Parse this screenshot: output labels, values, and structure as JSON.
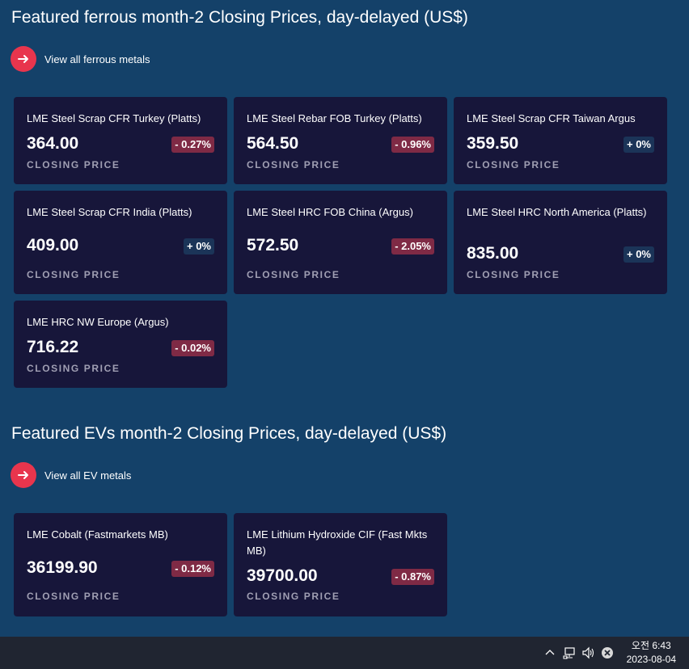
{
  "ferrous": {
    "title": "Featured ferrous month-2 Closing Prices, day-delayed (US$)",
    "view_all": "View all ferrous metals",
    "cards": [
      {
        "name": "LME Steel Scrap CFR Turkey (Platts)",
        "price": "364.00",
        "change": "- 0.27%",
        "sub": "CLOSING PRICE"
      },
      {
        "name": "LME Steel Rebar FOB Turkey (Platts)",
        "price": "564.50",
        "change": "- 0.96%",
        "sub": "CLOSING PRICE"
      },
      {
        "name": "LME Steel Scrap CFR Taiwan Argus",
        "price": "359.50",
        "change": "+ 0%",
        "sub": "CLOSING PRICE"
      },
      {
        "name": "LME Steel Scrap CFR India (Platts)",
        "price": "409.00",
        "change": "+ 0%",
        "sub": "CLOSING PRICE"
      },
      {
        "name": "LME Steel HRC FOB China (Argus)",
        "price": "572.50",
        "change": "- 2.05%",
        "sub": "CLOSING PRICE"
      },
      {
        "name": "LME Steel HRC North America (Platts)",
        "price": "835.00",
        "change": "+ 0%",
        "sub": "CLOSING PRICE"
      },
      {
        "name": "LME HRC NW Europe (Argus)",
        "price": "716.22",
        "change": "- 0.02%",
        "sub": "CLOSING PRICE"
      }
    ]
  },
  "ev": {
    "title": "Featured EVs month-2 Closing Prices, day-delayed (US$)",
    "view_all": "View all EV metals",
    "cards": [
      {
        "name": "LME Cobalt (Fastmarkets MB)",
        "price": "36199.90",
        "change": "- 0.12%",
        "sub": "CLOSING PRICE"
      },
      {
        "name": "LME Lithium Hydroxide CIF (Fast Mkts MB)",
        "price": "39700.00",
        "change": "- 0.87%",
        "sub": "CLOSING PRICE"
      }
    ]
  },
  "icons": {
    "arrow": "arrow-right-icon",
    "tray": [
      "chevron-up-icon",
      "network-icon",
      "volume-icon",
      "close-circle-icon"
    ]
  },
  "colors": {
    "background": "#144169",
    "card": "#17163a",
    "accent": "#e8354d",
    "negative_badge": "#7f2a45",
    "zero_badge": "#1b3458"
  },
  "taskbar": {
    "time": "오전 6:43",
    "date": "2023-08-04"
  }
}
